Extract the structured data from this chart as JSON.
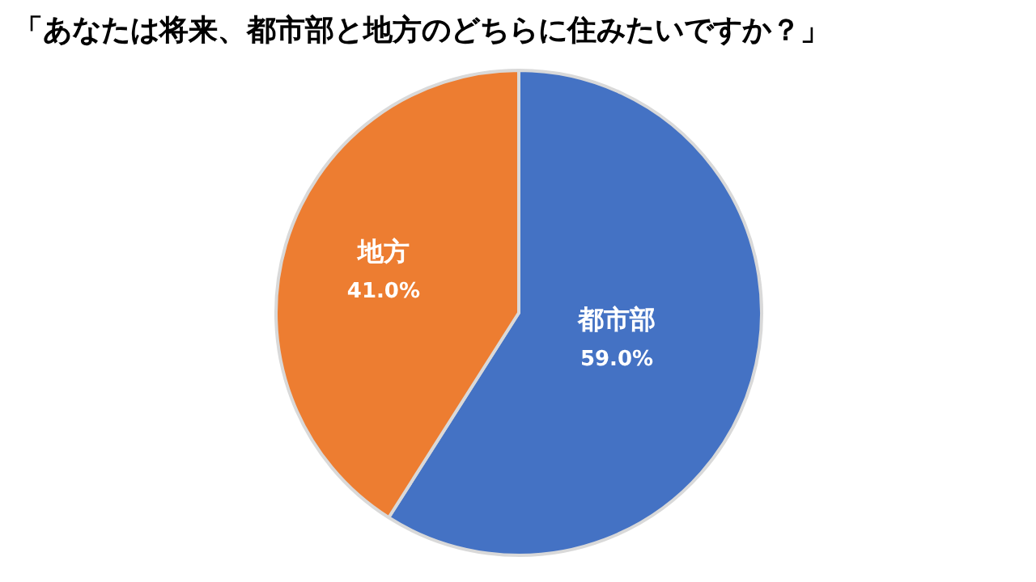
{
  "chart_data": {
    "type": "pie",
    "title": "「あなたは将来、都市部と地方のどちらに住みたいですか？」",
    "categories": [
      "都市部",
      "地方"
    ],
    "values": [
      59.0,
      41.0
    ],
    "value_labels": [
      "59.0%",
      "41.0%"
    ],
    "colors": [
      "#4472c4",
      "#ed7d31"
    ]
  }
}
